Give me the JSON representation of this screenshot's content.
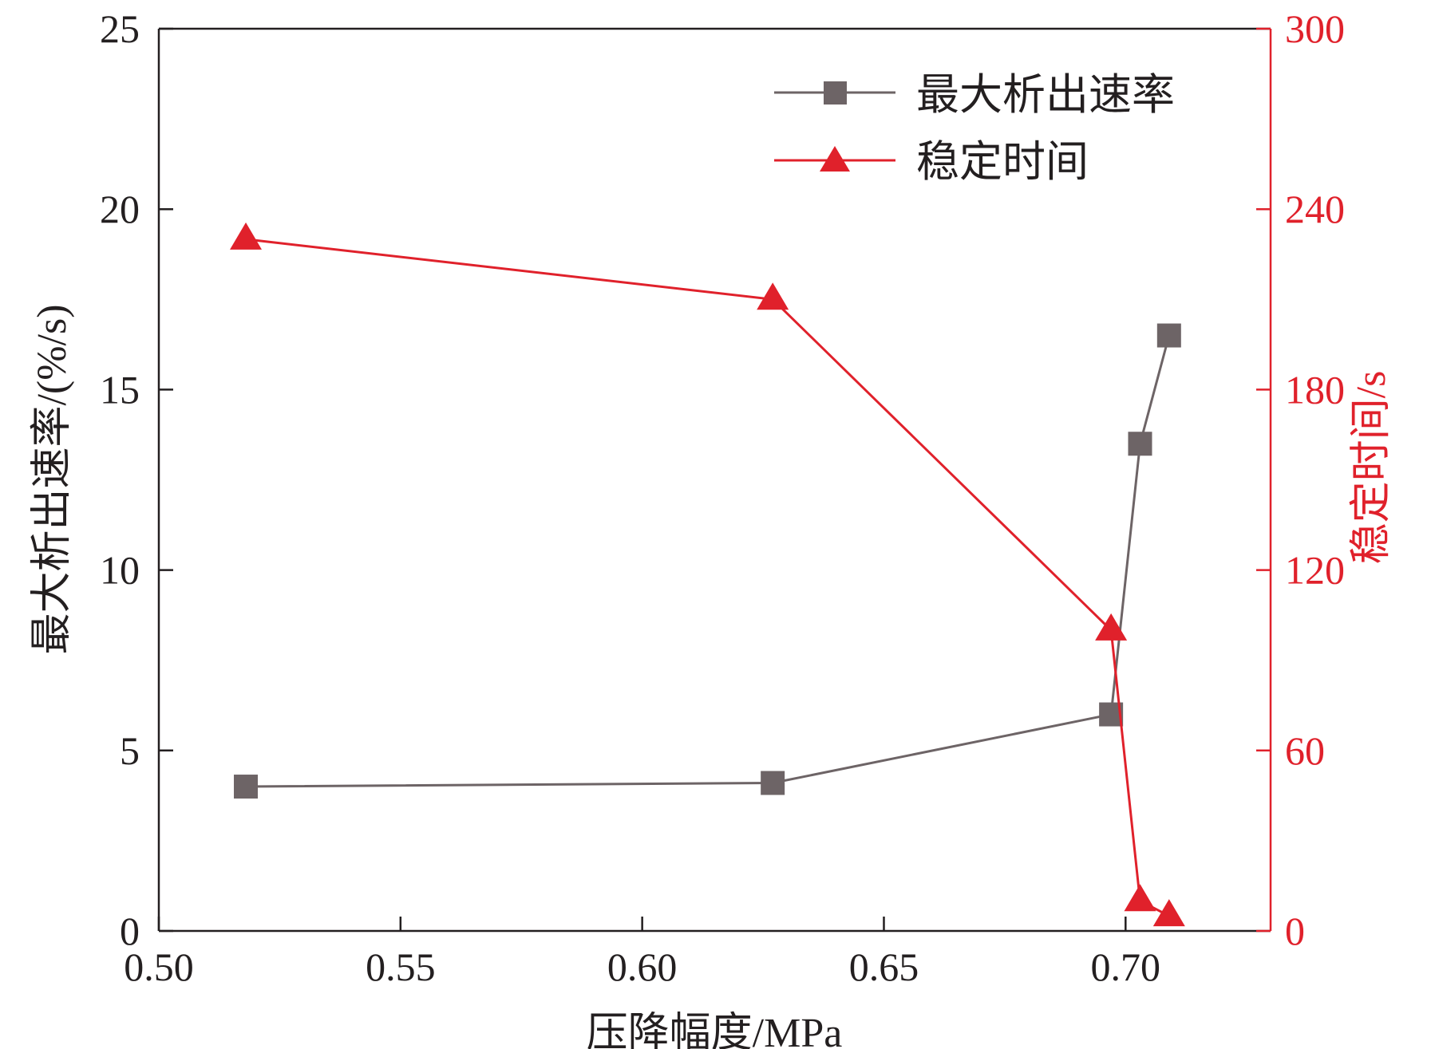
{
  "chart_data": {
    "type": "line",
    "xlabel": "压降幅度/MPa",
    "ylabel": "最大析出速率/(%/s)",
    "y2label": "稳定时间/s",
    "xlim": [
      0.5,
      0.73
    ],
    "ylim": [
      0,
      25
    ],
    "y2lim": [
      0,
      300
    ],
    "x_ticks": [
      "0.50",
      "0.55",
      "0.60",
      "0.65",
      "0.70"
    ],
    "y_ticks": [
      "0",
      "5",
      "10",
      "15",
      "20",
      "25"
    ],
    "y2_ticks": [
      "0",
      "60",
      "120",
      "180",
      "240",
      "300"
    ],
    "grid": false,
    "legend_position": "top-right",
    "series": [
      {
        "name": "最大析出速率",
        "axis": "left",
        "marker": "square",
        "color": "#6d6466",
        "x": [
          0.518,
          0.627,
          0.697,
          0.703,
          0.709
        ],
        "y": [
          4.0,
          4.1,
          6.0,
          13.5,
          16.5
        ]
      },
      {
        "name": "稳定时间",
        "axis": "right",
        "marker": "triangle",
        "color": "#e0212b",
        "x": [
          0.518,
          0.627,
          0.697,
          0.703,
          0.709
        ],
        "y": [
          230,
          210,
          100,
          10,
          5
        ]
      }
    ]
  }
}
